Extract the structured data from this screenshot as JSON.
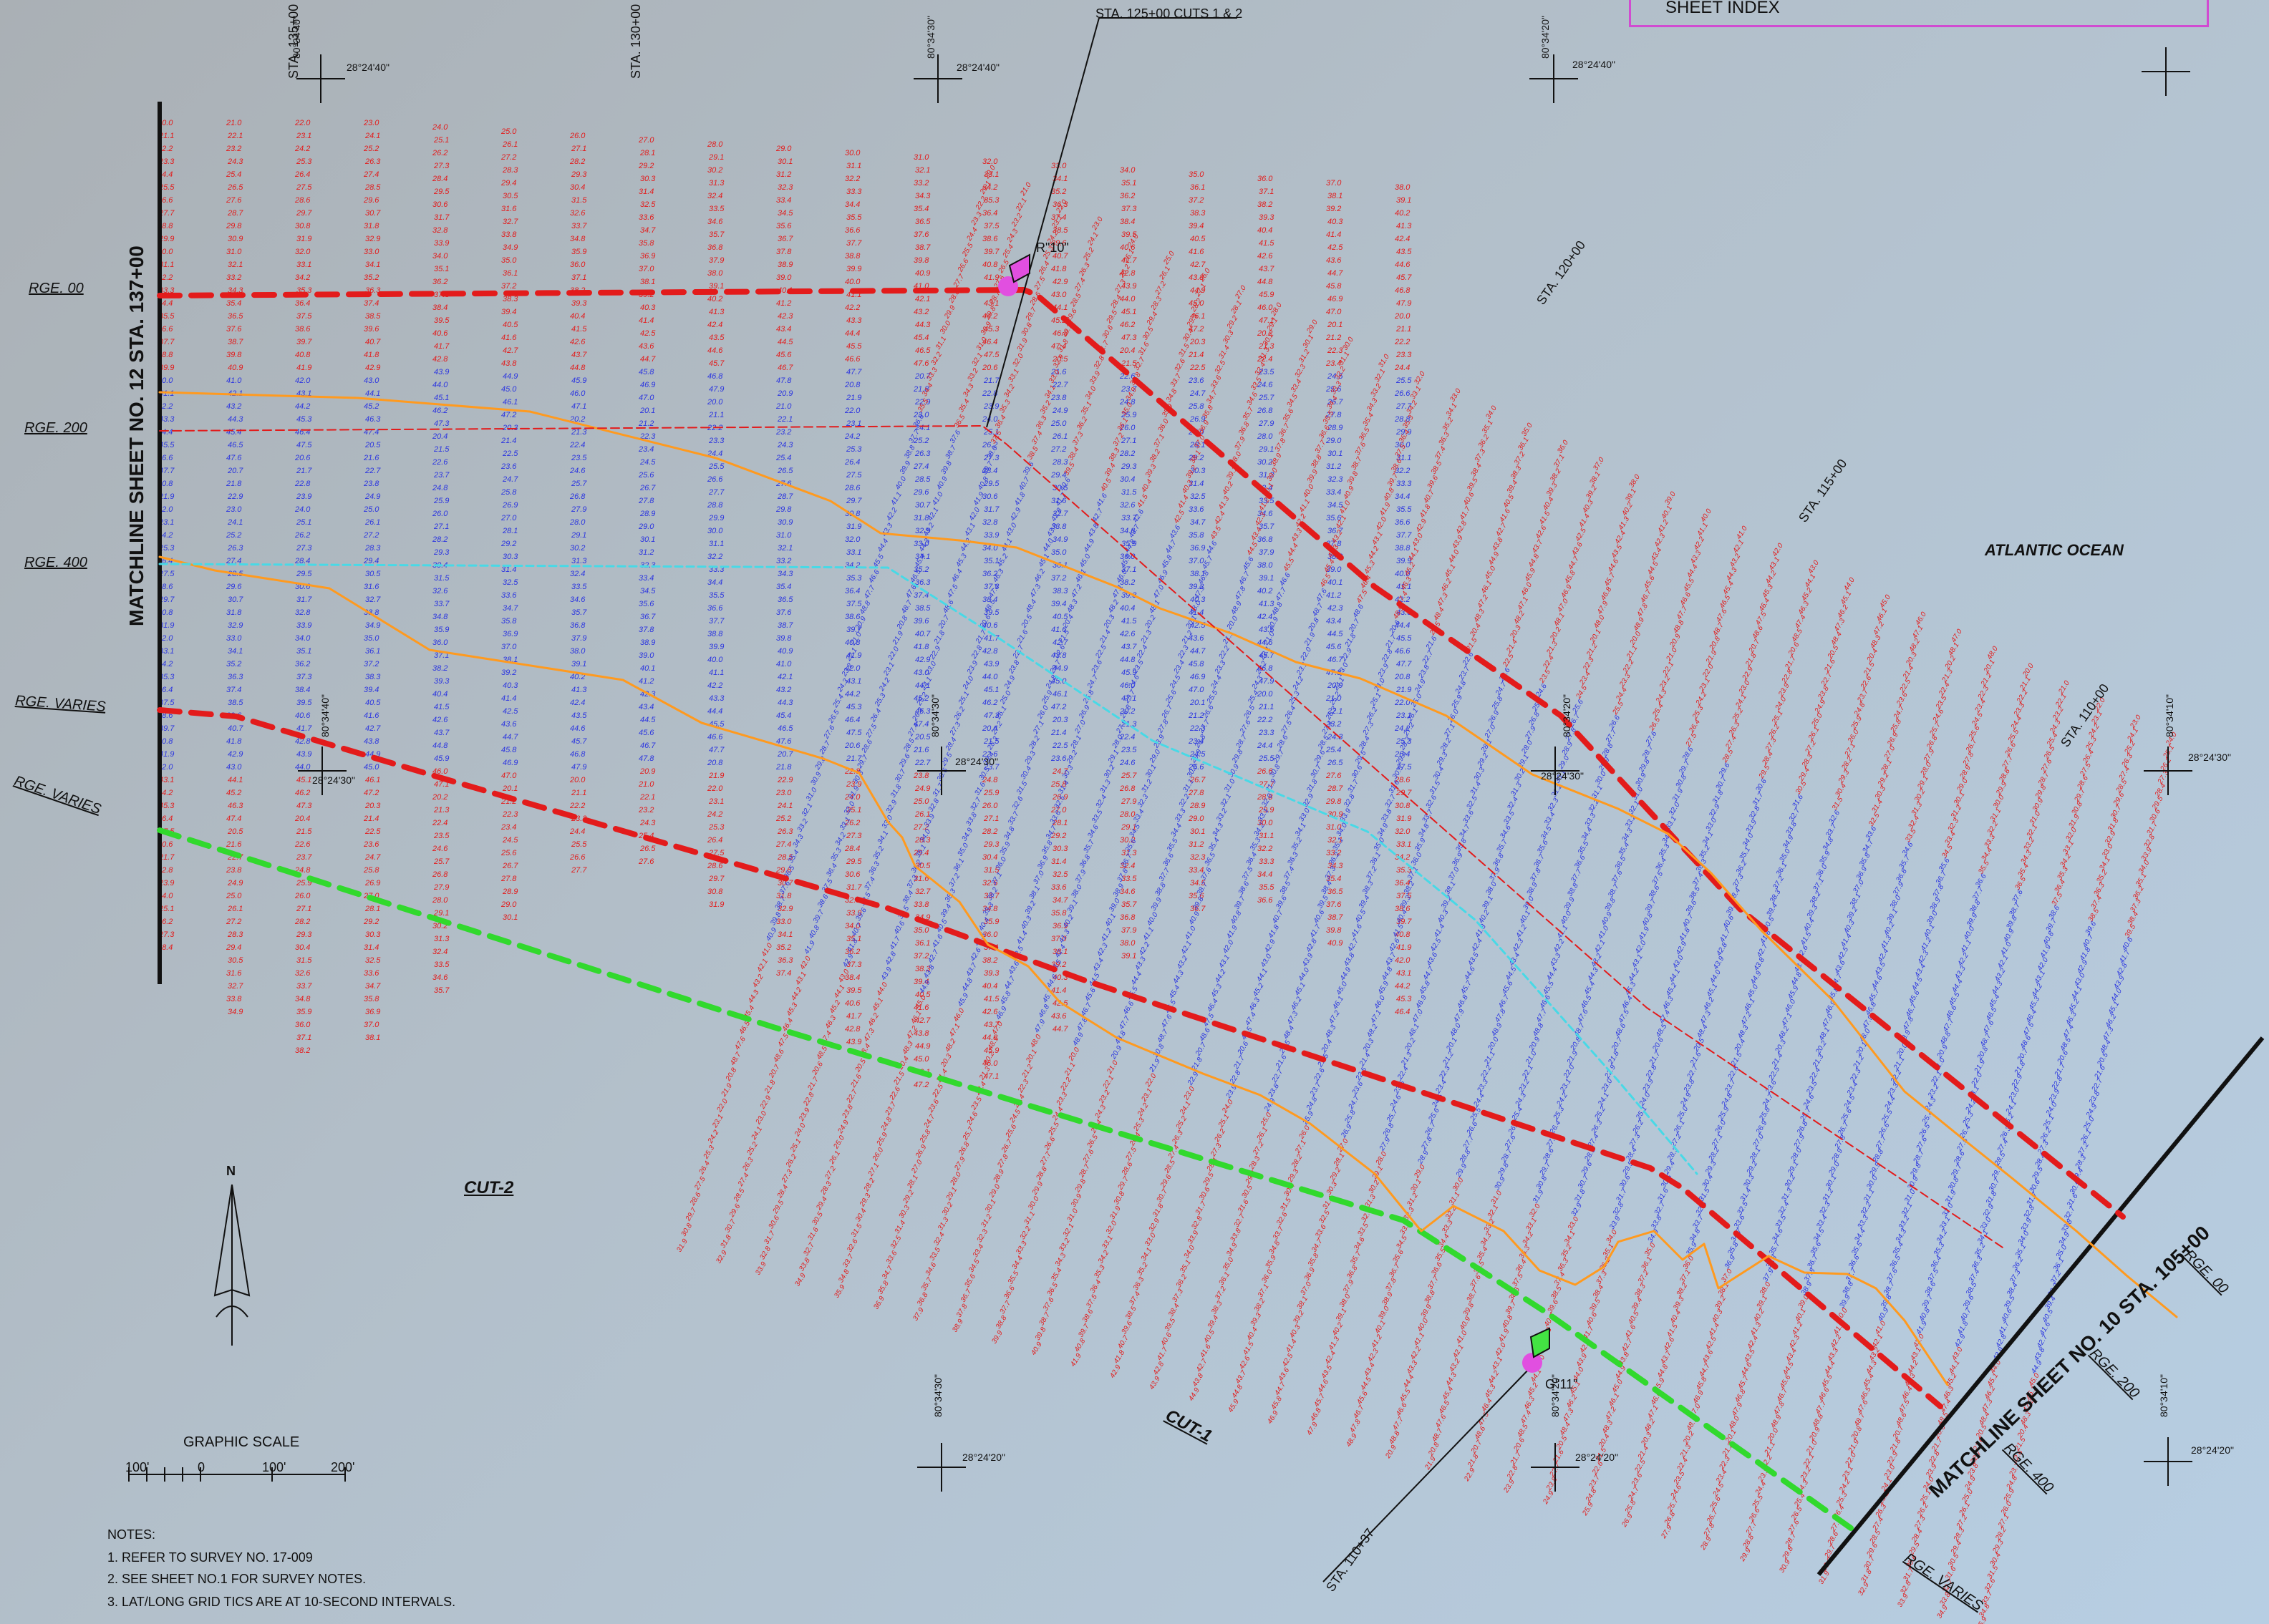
{
  "header": {
    "sheet_index": "SHEET INDEX",
    "sta_cuts": "STA. 125+00  CUTS 1 & 2"
  },
  "labels": {
    "matchline_left": "MATCHLINE SHEET NO. 12 STA. 137+00",
    "matchline_right": "MATCHLINE SHEET NO. 10  STA. 105+00",
    "atlantic_ocean": "ATLANTIC OCEAN",
    "cut1": "CUT-1",
    "cut2": "CUT-2",
    "rge_00_left": "RGE. 00",
    "rge_200_left": "RGE. 200",
    "rge_400_left": "RGE. 400",
    "rge_varies_1": "RGE. VARIES",
    "rge_varies_2": "RGE. VARIES",
    "rge_00_right": "RGE. 00",
    "rge_200_right": "RGE. 200",
    "rge_400_right": "RGE. 400",
    "rge_varies_right": "RGE. VARIES",
    "graphic_scale": "GRAPHIC SCALE",
    "r10": "R\"10\"",
    "g11": "G\"11\"",
    "sta_135": "STA. 135+00",
    "sta_130": "STA. 130+00",
    "sta_120": "STA. 120+00",
    "sta_115": "STA. 115+00",
    "sta_110": "STA. 110+00",
    "sta_11037": "STA. 110+37",
    "north": "N",
    "scale_100w": "100'",
    "scale_0": "0",
    "scale_100e": "100'",
    "scale_200": "200'",
    "coord_1": "80°34'40\"",
    "coord_2": "28°24'40\"",
    "coord_3": "80°34'30\"",
    "coord_4": "28°24'40\"",
    "coord_5": "80°34'20\"",
    "coord_6": "28°24'40\"",
    "coord_7": "80°34'40\"",
    "coord_8": "28°24'30\"",
    "coord_9": "80°34'30\"",
    "coord_10": "28°24'30\"",
    "coord_11": "80°34'20\"",
    "coord_12": "28°24'30\"",
    "coord_13": "80°34'10\"",
    "coord_14": "28°24'30\"",
    "coord_15": "80°34'30\"",
    "coord_16": "28°24'20\"",
    "coord_17": "80°34'20\"",
    "coord_18": "28°24'20\"",
    "coord_19": "80°34'10\"",
    "coord_20": "28°24'20\""
  },
  "notes": {
    "title": "NOTES:",
    "items": [
      "1.  REFER TO SURVEY NO.  17-009",
      "2.  SEE SHEET NO.1 FOR SURVEY NOTES.",
      "3.  LAT/LONG GRID TICS ARE AT 10-SECOND INTERVALS."
    ]
  },
  "colors": {
    "red": "#e31b1b",
    "blue": "#2b35e0",
    "green": "#31d92d",
    "orange": "#ff9a1f",
    "cyan": "#48d9e6",
    "magenta": "#e14fe0",
    "black": "#111111"
  }
}
